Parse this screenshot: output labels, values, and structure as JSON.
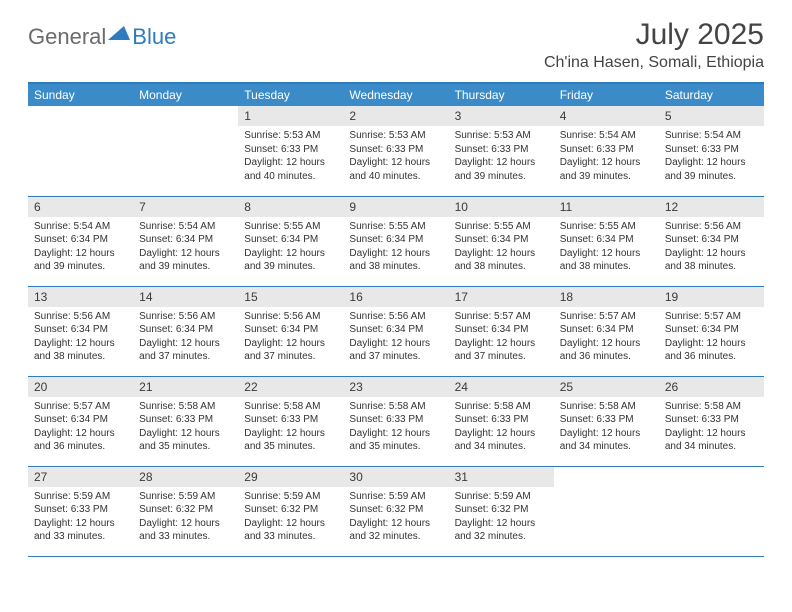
{
  "logo": {
    "general": "General",
    "blue": "Blue"
  },
  "title": "July 2025",
  "location": "Ch'ina Hasen, Somali, Ethiopia",
  "colors": {
    "header_bg": "#3b8bc8",
    "border": "#2f7bbf",
    "daynum_bg": "#e8e8e8",
    "logo_gray": "#6b6b6b",
    "logo_blue": "#2f7bbf"
  },
  "day_labels": [
    "Sunday",
    "Monday",
    "Tuesday",
    "Wednesday",
    "Thursday",
    "Friday",
    "Saturday"
  ],
  "first_weekday": 2,
  "days": [
    {
      "n": "1",
      "sr": "5:53 AM",
      "ss": "6:33 PM",
      "dl": "12 hours and 40 minutes."
    },
    {
      "n": "2",
      "sr": "5:53 AM",
      "ss": "6:33 PM",
      "dl": "12 hours and 40 minutes."
    },
    {
      "n": "3",
      "sr": "5:53 AM",
      "ss": "6:33 PM",
      "dl": "12 hours and 39 minutes."
    },
    {
      "n": "4",
      "sr": "5:54 AM",
      "ss": "6:33 PM",
      "dl": "12 hours and 39 minutes."
    },
    {
      "n": "5",
      "sr": "5:54 AM",
      "ss": "6:33 PM",
      "dl": "12 hours and 39 minutes."
    },
    {
      "n": "6",
      "sr": "5:54 AM",
      "ss": "6:34 PM",
      "dl": "12 hours and 39 minutes."
    },
    {
      "n": "7",
      "sr": "5:54 AM",
      "ss": "6:34 PM",
      "dl": "12 hours and 39 minutes."
    },
    {
      "n": "8",
      "sr": "5:55 AM",
      "ss": "6:34 PM",
      "dl": "12 hours and 39 minutes."
    },
    {
      "n": "9",
      "sr": "5:55 AM",
      "ss": "6:34 PM",
      "dl": "12 hours and 38 minutes."
    },
    {
      "n": "10",
      "sr": "5:55 AM",
      "ss": "6:34 PM",
      "dl": "12 hours and 38 minutes."
    },
    {
      "n": "11",
      "sr": "5:55 AM",
      "ss": "6:34 PM",
      "dl": "12 hours and 38 minutes."
    },
    {
      "n": "12",
      "sr": "5:56 AM",
      "ss": "6:34 PM",
      "dl": "12 hours and 38 minutes."
    },
    {
      "n": "13",
      "sr": "5:56 AM",
      "ss": "6:34 PM",
      "dl": "12 hours and 38 minutes."
    },
    {
      "n": "14",
      "sr": "5:56 AM",
      "ss": "6:34 PM",
      "dl": "12 hours and 37 minutes."
    },
    {
      "n": "15",
      "sr": "5:56 AM",
      "ss": "6:34 PM",
      "dl": "12 hours and 37 minutes."
    },
    {
      "n": "16",
      "sr": "5:56 AM",
      "ss": "6:34 PM",
      "dl": "12 hours and 37 minutes."
    },
    {
      "n": "17",
      "sr": "5:57 AM",
      "ss": "6:34 PM",
      "dl": "12 hours and 37 minutes."
    },
    {
      "n": "18",
      "sr": "5:57 AM",
      "ss": "6:34 PM",
      "dl": "12 hours and 36 minutes."
    },
    {
      "n": "19",
      "sr": "5:57 AM",
      "ss": "6:34 PM",
      "dl": "12 hours and 36 minutes."
    },
    {
      "n": "20",
      "sr": "5:57 AM",
      "ss": "6:34 PM",
      "dl": "12 hours and 36 minutes."
    },
    {
      "n": "21",
      "sr": "5:58 AM",
      "ss": "6:33 PM",
      "dl": "12 hours and 35 minutes."
    },
    {
      "n": "22",
      "sr": "5:58 AM",
      "ss": "6:33 PM",
      "dl": "12 hours and 35 minutes."
    },
    {
      "n": "23",
      "sr": "5:58 AM",
      "ss": "6:33 PM",
      "dl": "12 hours and 35 minutes."
    },
    {
      "n": "24",
      "sr": "5:58 AM",
      "ss": "6:33 PM",
      "dl": "12 hours and 34 minutes."
    },
    {
      "n": "25",
      "sr": "5:58 AM",
      "ss": "6:33 PM",
      "dl": "12 hours and 34 minutes."
    },
    {
      "n": "26",
      "sr": "5:58 AM",
      "ss": "6:33 PM",
      "dl": "12 hours and 34 minutes."
    },
    {
      "n": "27",
      "sr": "5:59 AM",
      "ss": "6:33 PM",
      "dl": "12 hours and 33 minutes."
    },
    {
      "n": "28",
      "sr": "5:59 AM",
      "ss": "6:32 PM",
      "dl": "12 hours and 33 minutes."
    },
    {
      "n": "29",
      "sr": "5:59 AM",
      "ss": "6:32 PM",
      "dl": "12 hours and 33 minutes."
    },
    {
      "n": "30",
      "sr": "5:59 AM",
      "ss": "6:32 PM",
      "dl": "12 hours and 32 minutes."
    },
    {
      "n": "31",
      "sr": "5:59 AM",
      "ss": "6:32 PM",
      "dl": "12 hours and 32 minutes."
    }
  ],
  "labels": {
    "sunrise": "Sunrise:",
    "sunset": "Sunset:",
    "daylight": "Daylight:"
  }
}
